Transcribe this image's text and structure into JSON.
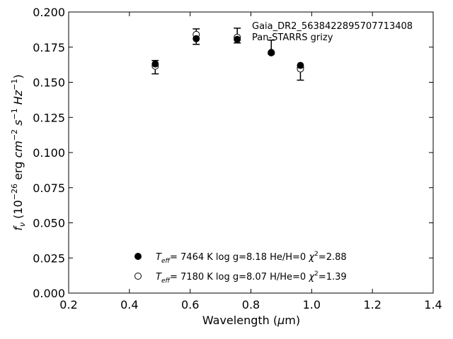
{
  "chart_data": {
    "type": "scatter",
    "annotation_lines": [
      "Gaia_DR2_5638422895707713408",
      "Pan-STARRS grizy"
    ],
    "xlabel": "Wavelength (μm)",
    "ylabel": "f_ν (10^-26 erg cm^-2 s^-1 Hz^-1)",
    "xlim": [
      0.2,
      1.4
    ],
    "ylim": [
      0.0,
      0.2
    ],
    "xticks": [
      0.2,
      0.4,
      0.6,
      0.8,
      1.0,
      1.2,
      1.4
    ],
    "xtick_labels": [
      "0.2",
      "0.4",
      "0.6",
      "0.8",
      "1.0",
      "1.2",
      "1.4"
    ],
    "yticks": [
      0.0,
      0.025,
      0.05,
      0.075,
      0.1,
      0.125,
      0.15,
      0.175,
      0.2
    ],
    "ytick_labels": [
      "0.000",
      "0.025",
      "0.050",
      "0.075",
      "0.100",
      "0.125",
      "0.150",
      "0.175",
      "0.200"
    ],
    "grid": false,
    "legend_position": "bottom-center",
    "observed": {
      "x": [
        0.485,
        0.62,
        0.755,
        0.867,
        0.963
      ],
      "y": [
        0.1615,
        0.184,
        0.182,
        0.171,
        0.1595
      ],
      "yerr_low": [
        0.0055,
        0.007,
        0.004,
        0.001,
        0.008
      ],
      "yerr_high": [
        0.004,
        0.004,
        0.0065,
        0.009,
        0.001
      ],
      "marker": "open-circle-with-errorbar"
    },
    "series": [
      {
        "marker": "filled-circle",
        "x": [
          0.485,
          0.62,
          0.755,
          0.867,
          0.963
        ],
        "y": [
          0.163,
          0.181,
          0.1805,
          0.1712,
          0.162
        ],
        "label": {
          "teff": "7464",
          "logg": "8.18",
          "comp": "He/H=0",
          "chi2": "2.88"
        }
      },
      {
        "marker": "open-circle",
        "x": [
          0.485,
          0.62,
          0.755,
          0.867,
          0.963
        ],
        "y": [
          0.1615,
          0.184,
          0.182,
          0.171,
          0.1595
        ],
        "label": {
          "teff": "7180",
          "logg": "8.07",
          "comp": "H/He=0",
          "chi2": "1.39"
        }
      }
    ]
  }
}
